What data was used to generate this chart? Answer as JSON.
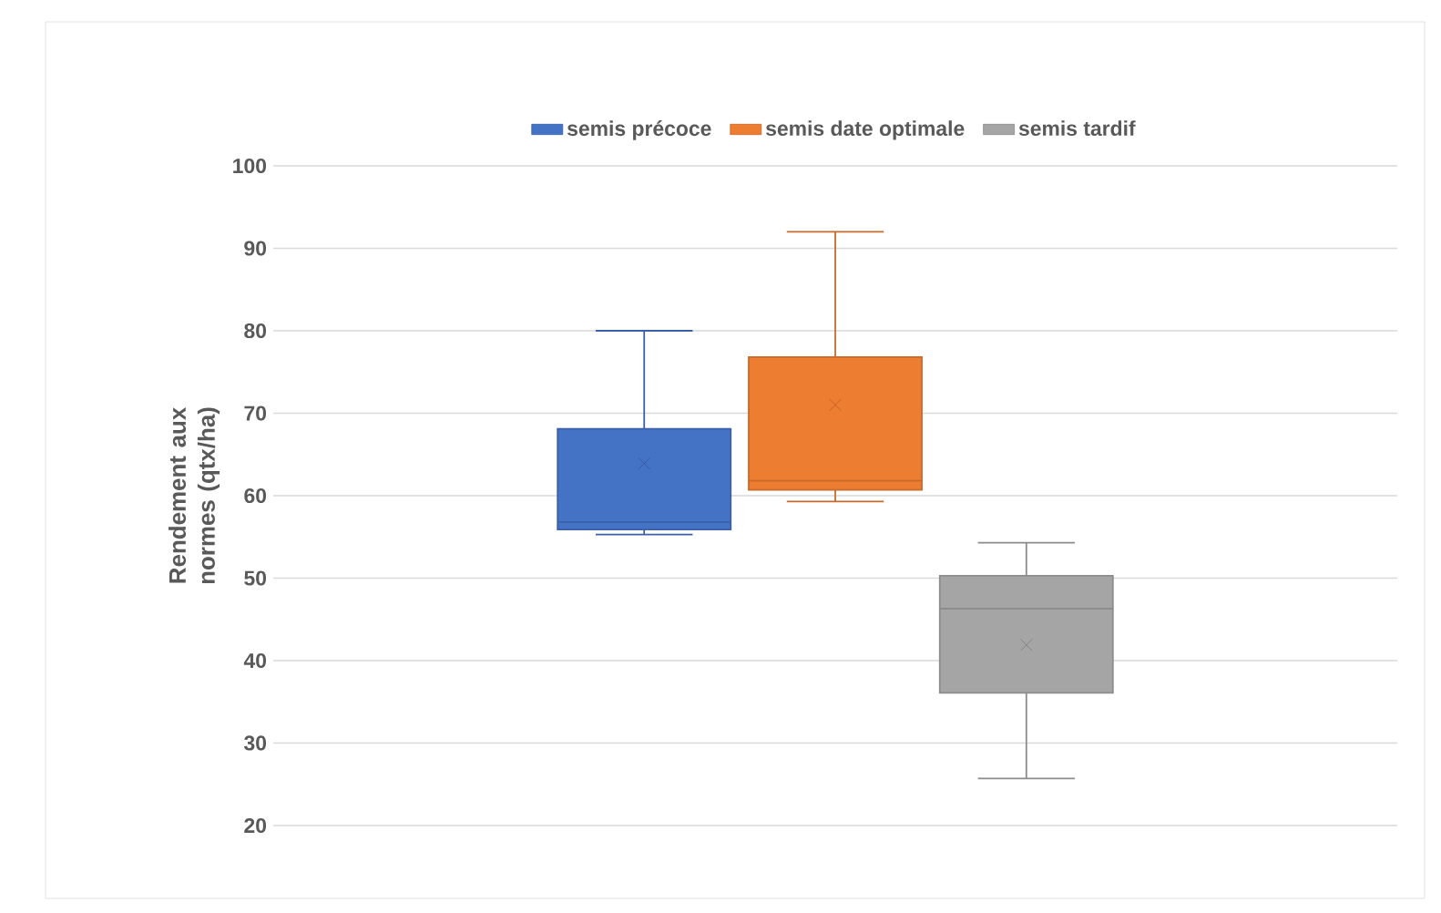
{
  "chart_data": {
    "type": "box",
    "ylabel": "Rendement aux normes (qtx/ha)",
    "categories": [
      null
    ],
    "ylim": [
      20,
      100
    ],
    "yticks": [
      20,
      30,
      40,
      50,
      60,
      70,
      80,
      90,
      100
    ],
    "grid": "y",
    "legend": "top",
    "tick_labels": "y",
    "marker": "cross",
    "series": [
      {
        "name": "semis précoce",
        "color": "#4472c4",
        "boxes": [
          {
            "low": 55.3,
            "q1": 55.9,
            "median": 56.8,
            "q3": 68.1,
            "high": 80,
            "mean": 63.9
          }
        ]
      },
      {
        "name": "semis date optimale",
        "color": "#ed7d31",
        "boxes": [
          {
            "low": 59.3,
            "q1": 60.7,
            "median": 61.8,
            "q3": 76.8,
            "high": 92,
            "mean": 71
          }
        ]
      },
      {
        "name": "semis tardif",
        "color": "#a5a5a5",
        "boxes": [
          {
            "low": 25.7,
            "q1": 36.1,
            "median": 46.3,
            "q3": 50.3,
            "high": 54.3,
            "mean": 41.9
          }
        ]
      }
    ]
  }
}
